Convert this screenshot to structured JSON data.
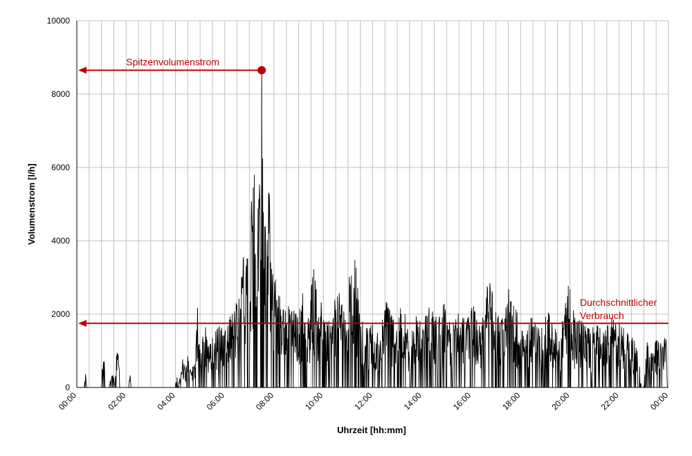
{
  "chart_data": {
    "type": "line",
    "xlabel": "Uhrzeit [hh:mm]",
    "ylabel": "Volumenstrom [l/h]",
    "x_ticks": [
      "00:00",
      "02:00",
      "04:00",
      "06:00",
      "08:00",
      "10:00",
      "12:00",
      "14:00",
      "16:00",
      "18:00",
      "20:00",
      "22:00",
      "00:00"
    ],
    "y_ticks": [
      "0",
      "2000",
      "4000",
      "6000",
      "8000",
      "10000"
    ],
    "xlim_hours": [
      0,
      24
    ],
    "ylim": [
      0,
      10000
    ],
    "grid": true,
    "colors": {
      "series": "#000000",
      "annotation": "#c00000",
      "grid": "#bfbfbf"
    },
    "peak": {
      "label": "Spitzenvolumenstrom",
      "time_hours": 7.5,
      "value": 8650
    },
    "average": {
      "label_line1": "Durchschnittlicher",
      "label_line2": "Verbrauch",
      "value": 1750
    },
    "series": [
      {
        "values_description": "sampled flow-rate envelope: [hour, max_l_per_h]",
        "envelope": [
          [
            0.0,
            0
          ],
          [
            0.3,
            0
          ],
          [
            0.35,
            430
          ],
          [
            0.4,
            0
          ],
          [
            1.0,
            0
          ],
          [
            1.05,
            850
          ],
          [
            1.1,
            1150
          ],
          [
            1.15,
            0
          ],
          [
            1.3,
            0
          ],
          [
            1.45,
            500
          ],
          [
            1.55,
            0
          ],
          [
            1.6,
            1000
          ],
          [
            1.7,
            850
          ],
          [
            1.75,
            0
          ],
          [
            2.1,
            0
          ],
          [
            2.15,
            500
          ],
          [
            2.2,
            0
          ],
          [
            4.0,
            0
          ],
          [
            4.05,
            500
          ],
          [
            4.1,
            0
          ],
          [
            4.3,
            800
          ],
          [
            4.4,
            500
          ],
          [
            4.5,
            1000
          ],
          [
            4.6,
            500
          ],
          [
            4.8,
            800
          ],
          [
            4.9,
            2180
          ],
          [
            5.0,
            1000
          ],
          [
            5.2,
            1700
          ],
          [
            5.4,
            1200
          ],
          [
            5.6,
            1500
          ],
          [
            5.8,
            1700
          ],
          [
            6.0,
            1500
          ],
          [
            6.2,
            1900
          ],
          [
            6.4,
            2200
          ],
          [
            6.6,
            2500
          ],
          [
            6.8,
            3800
          ],
          [
            7.0,
            5600
          ],
          [
            7.1,
            5000
          ],
          [
            7.2,
            5800
          ],
          [
            7.3,
            4800
          ],
          [
            7.4,
            5200
          ],
          [
            7.5,
            8650
          ],
          [
            7.6,
            4200
          ],
          [
            7.7,
            5000
          ],
          [
            7.8,
            5400
          ],
          [
            7.9,
            4000
          ],
          [
            8.0,
            3000
          ],
          [
            8.2,
            2800
          ],
          [
            8.4,
            2400
          ],
          [
            8.6,
            2200
          ],
          [
            8.8,
            2100
          ],
          [
            9.0,
            2000
          ],
          [
            9.2,
            2800
          ],
          [
            9.4,
            1900
          ],
          [
            9.6,
            3300
          ],
          [
            9.8,
            2200
          ],
          [
            10.0,
            2500
          ],
          [
            10.3,
            1800
          ],
          [
            10.6,
            2900
          ],
          [
            10.8,
            2100
          ],
          [
            11.0,
            2700
          ],
          [
            11.2,
            4000
          ],
          [
            11.3,
            3500
          ],
          [
            11.5,
            2000
          ],
          [
            11.8,
            1600
          ],
          [
            12.0,
            1800
          ],
          [
            12.3,
            1500
          ],
          [
            12.6,
            2600
          ],
          [
            12.9,
            1700
          ],
          [
            13.2,
            2300
          ],
          [
            13.5,
            1500
          ],
          [
            13.8,
            2000
          ],
          [
            14.0,
            1700
          ],
          [
            14.3,
            2200
          ],
          [
            14.6,
            1900
          ],
          [
            14.9,
            2300
          ],
          [
            15.2,
            1600
          ],
          [
            15.5,
            2100
          ],
          [
            15.8,
            1800
          ],
          [
            16.1,
            2300
          ],
          [
            16.4,
            1700
          ],
          [
            16.7,
            3000
          ],
          [
            17.0,
            2200
          ],
          [
            17.3,
            1800
          ],
          [
            17.6,
            3000
          ],
          [
            17.9,
            1900
          ],
          [
            18.2,
            1600
          ],
          [
            18.5,
            2000
          ],
          [
            18.8,
            1500
          ],
          [
            19.1,
            2100
          ],
          [
            19.4,
            1700
          ],
          [
            19.7,
            1800
          ],
          [
            20.0,
            3050
          ],
          [
            20.2,
            1900
          ],
          [
            20.5,
            1800
          ],
          [
            20.8,
            1600
          ],
          [
            21.1,
            1700
          ],
          [
            21.4,
            1500
          ],
          [
            21.7,
            1900
          ],
          [
            22.0,
            1800
          ],
          [
            22.3,
            1500
          ],
          [
            22.6,
            1400
          ],
          [
            22.8,
            1000
          ],
          [
            22.9,
            0
          ],
          [
            23.0,
            0
          ],
          [
            23.1,
            1400
          ],
          [
            23.3,
            900
          ],
          [
            23.5,
            1300
          ],
          [
            23.7,
            1200
          ],
          [
            23.9,
            1400
          ],
          [
            24.0,
            0
          ]
        ]
      }
    ]
  }
}
